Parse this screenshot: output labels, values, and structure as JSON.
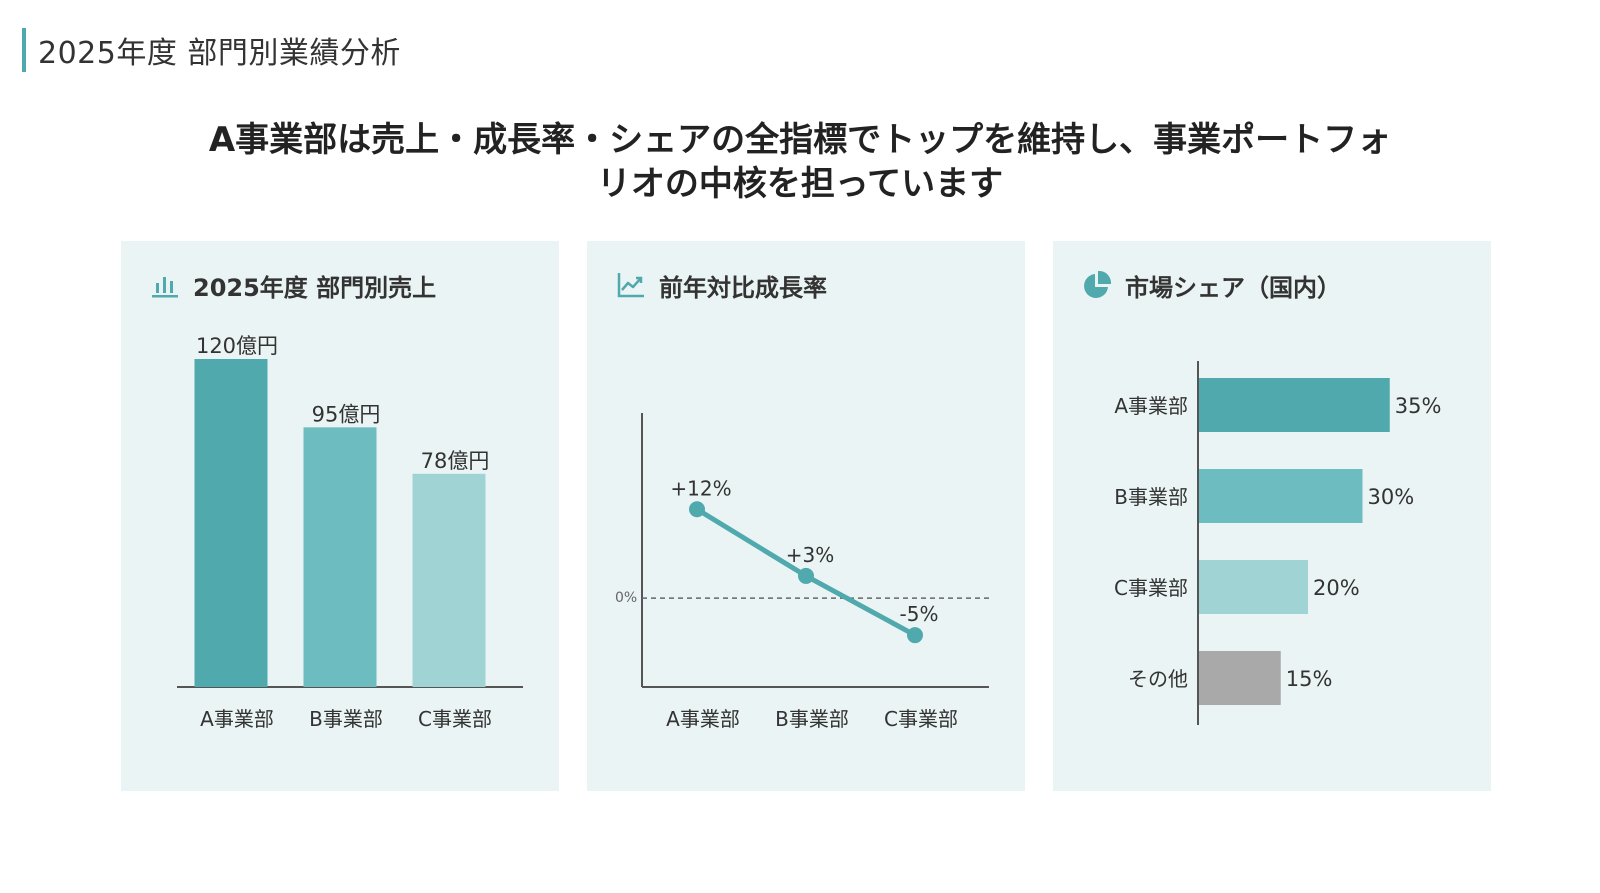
{
  "page": {
    "title": "2025年度 部門別業績分析",
    "headline_line1": "A事業部は売上・成長率・シェアの全指標でトップを維持し、事業ポートフォ",
    "headline_line2": "リオの中核を担っています"
  },
  "colors": {
    "accent": "#4fa9ad",
    "dept_a": "#4fa9ad",
    "dept_b": "#6dbdc0",
    "dept_c": "#a0d3d4",
    "other": "#a9a9a9",
    "panel_bg": "#ebf4f4",
    "axis": "#555555"
  },
  "panels": {
    "sales": {
      "title": "2025年度 部門別売上",
      "icon": "bar-chart-icon"
    },
    "growth": {
      "title": "前年対比成長率",
      "icon": "line-chart-icon"
    },
    "share": {
      "title": "市場シェア（国内）",
      "icon": "pie-chart-icon"
    }
  },
  "chart_data": [
    {
      "type": "bar",
      "title": "2025年度 部門別売上",
      "categories": [
        "A事業部",
        "B事業部",
        "C事業部"
      ],
      "values": [
        120,
        95,
        78
      ],
      "value_labels": [
        "120億円",
        "95億円",
        "78億円"
      ],
      "ylim": [
        0,
        120
      ],
      "grid": false
    },
    {
      "type": "line",
      "title": "前年対比成長率",
      "categories": [
        "A事業部",
        "B事業部",
        "C事業部"
      ],
      "values": [
        12,
        3,
        -5
      ],
      "value_labels": [
        "+12%",
        "+3%",
        "-5%"
      ],
      "ylim": [
        -12,
        25
      ],
      "reference_line": {
        "value": 0,
        "label": "0%"
      },
      "grid": false
    },
    {
      "type": "bar",
      "orientation": "horizontal",
      "title": "市場シェア（国内）",
      "categories": [
        "A事業部",
        "B事業部",
        "C事業部",
        "その他"
      ],
      "values": [
        35,
        30,
        20,
        15
      ],
      "value_labels": [
        "35%",
        "30%",
        "20%",
        "15%"
      ],
      "xlim": [
        0,
        40
      ],
      "grid": false
    }
  ]
}
